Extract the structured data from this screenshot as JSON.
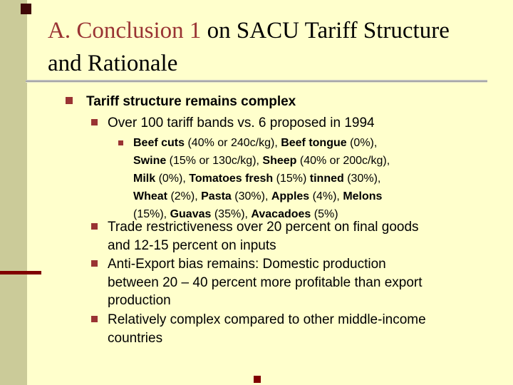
{
  "slide": {
    "title": {
      "accent": "A. Conclusion 1",
      "rest": " on SACU Tariff Structure and Rationale"
    },
    "colors": {
      "background": "#FFFFCC",
      "stripe": "#CBCB99",
      "title_accent": "#993333",
      "bullet": "#993333",
      "dark_square": "#400808",
      "maroon_line": "#800000",
      "divider": "#999999"
    },
    "bullets": {
      "l1": "Tariff structure remains complex",
      "l2a": "Over 100 tariff bands vs. 6 proposed in 1994",
      "l3_segments": [
        {
          "text": "Beef cuts",
          "bold": true
        },
        {
          "text": " (40% or 240c/kg), ",
          "bold": false
        },
        {
          "text": "Beef tongue",
          "bold": true
        },
        {
          "text": " (0%),\n",
          "bold": false
        },
        {
          "text": "Swine",
          "bold": true
        },
        {
          "text": " (15% or 130c/kg), ",
          "bold": false
        },
        {
          "text": "Sheep",
          "bold": true
        },
        {
          "text": " (40% or 200c/kg),\n",
          "bold": false
        },
        {
          "text": "Milk",
          "bold": true
        },
        {
          "text": " (0%), ",
          "bold": false
        },
        {
          "text": "Tomatoes fresh",
          "bold": true
        },
        {
          "text": " (15%) ",
          "bold": false
        },
        {
          "text": "tinned",
          "bold": true
        },
        {
          "text": " (30%),\n",
          "bold": false
        },
        {
          "text": "Wheat",
          "bold": true
        },
        {
          "text": " (2%), ",
          "bold": false
        },
        {
          "text": "Pasta",
          "bold": true
        },
        {
          "text": " (30%), ",
          "bold": false
        },
        {
          "text": "Apples",
          "bold": true
        },
        {
          "text": " (4%), ",
          "bold": false
        },
        {
          "text": "Melons",
          "bold": true
        },
        {
          "text": "\n(15%), ",
          "bold": false
        },
        {
          "text": "Guavas",
          "bold": true
        },
        {
          "text": " (35%), ",
          "bold": false
        },
        {
          "text": "Avacadoes",
          "bold": true
        },
        {
          "text": " (5%)",
          "bold": false
        }
      ],
      "l2b": "Trade restrictiveness over 20 percent on final goods\nand 12-15 percent on inputs",
      "l2c": "Anti-Export bias remains: Domestic production\nbetween 20 – 40 percent more profitable than export\nproduction",
      "l2d": "Relatively complex compared to other middle-income\ncountries"
    }
  }
}
